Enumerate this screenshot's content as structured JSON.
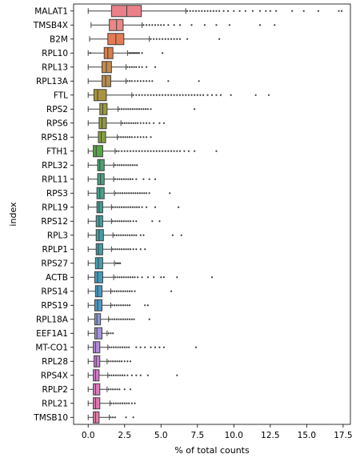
{
  "chart_data": {
    "type": "box",
    "orientation": "horizontal",
    "xlabel": "% of total counts",
    "ylabel": "index",
    "xlim": [
      -1.0,
      18.0
    ],
    "xticks": [
      0.0,
      2.5,
      5.0,
      7.5,
      10.0,
      12.5,
      15.0,
      17.5
    ],
    "xtick_labels": [
      "0.0",
      "2.5",
      "5.0",
      "7.5",
      "10.0",
      "12.5",
      "15.0",
      "17.5"
    ],
    "grid": false,
    "categories": [
      "MALAT1",
      "TMSB4X",
      "B2M",
      "RPL10",
      "RPL13",
      "RPL13A",
      "FTL",
      "RPS2",
      "RPS6",
      "RPS18",
      "FTH1",
      "RPL32",
      "RPL11",
      "RPS3",
      "RPL19",
      "RPS12",
      "RPL3",
      "RPLP1",
      "RPS27",
      "ACTB",
      "RPS14",
      "RPS19",
      "RPL18A",
      "EEF1A1",
      "MT-CO1",
      "RPL28",
      "RPS4X",
      "RPLP2",
      "RPL21",
      "TMSB10"
    ],
    "colors": [
      "#ea8089",
      "#e98887",
      "#e37b56",
      "#d97e49",
      "#c58b4b",
      "#b78c4e",
      "#a9933e",
      "#9b9a3d",
      "#8f993f",
      "#84a03f",
      "#56a646",
      "#48a477",
      "#47a385",
      "#45a28d",
      "#43a094",
      "#43a09c",
      "#429fa4",
      "#429ea8",
      "#429fb0",
      "#449bbe",
      "#489ac4",
      "#4a98c8",
      "#8b9ad6",
      "#a294d9",
      "#b28cd6",
      "#c57ed3",
      "#d179ca",
      "#d97ebd",
      "#df77b2",
      "#e17da7"
    ],
    "boxes": [
      {
        "whislo": 0.0,
        "q1": 1.6,
        "med": 2.65,
        "q3": 3.65,
        "whishi": 6.7,
        "outliers": [
          6.8,
          7.0,
          7.2,
          7.4,
          7.6,
          7.8,
          8.0,
          8.2,
          8.4,
          8.6,
          8.8,
          9.0,
          9.3,
          9.6,
          10.0,
          10.4,
          10.8,
          11.3,
          11.8,
          12.2,
          12.5,
          12.9,
          14.0,
          14.8,
          15.8,
          17.2,
          17.4
        ]
      },
      {
        "whislo": 0.2,
        "q1": 1.45,
        "med": 1.95,
        "q3": 2.4,
        "whishi": 3.7,
        "outliers": [
          3.8,
          4.0,
          4.2,
          4.4,
          4.6,
          4.8,
          5.0,
          5.2,
          5.5,
          5.9,
          6.3,
          7.1,
          8.0,
          8.8,
          9.7,
          11.8,
          12.8
        ]
      },
      {
        "whislo": 0.1,
        "q1": 1.35,
        "med": 1.9,
        "q3": 2.45,
        "whishi": 4.2,
        "outliers": [
          4.3,
          4.5,
          4.7,
          4.9,
          5.1,
          5.3,
          5.5,
          5.7,
          5.9,
          6.1,
          6.3,
          6.8,
          9.0
        ]
      },
      {
        "whislo": 0.0,
        "q1": 1.1,
        "med": 1.35,
        "q3": 1.7,
        "whishi": 2.7,
        "outliers": [
          0.15,
          2.8,
          2.9,
          3.0,
          3.1,
          3.2,
          3.3,
          3.4,
          3.5,
          3.7,
          5.1
        ]
      },
      {
        "whislo": 0.0,
        "q1": 0.95,
        "med": 1.25,
        "q3": 1.6,
        "whishi": 2.6,
        "outliers": [
          2.7,
          2.85,
          3.0,
          3.15,
          3.3,
          3.5,
          3.7,
          4.0,
          4.6
        ]
      },
      {
        "whislo": 0.0,
        "q1": 0.95,
        "med": 1.2,
        "q3": 1.55,
        "whishi": 2.6,
        "outliers": [
          2.7,
          2.85,
          3.0,
          3.2,
          3.4,
          3.6,
          3.8,
          4.0,
          4.2,
          4.4,
          5.5,
          7.6
        ]
      },
      {
        "whislo": 0.0,
        "q1": 0.4,
        "med": 0.65,
        "q3": 1.25,
        "whishi": 3.0,
        "outliers": [
          3.1,
          3.3,
          3.5,
          3.7,
          3.9,
          4.1,
          4.3,
          4.5,
          4.7,
          4.9,
          5.1,
          5.3,
          5.5,
          5.7,
          5.9,
          6.1,
          6.3,
          6.5,
          6.7,
          6.9,
          7.1,
          7.3,
          7.5,
          7.7,
          7.9,
          8.2,
          8.5,
          8.8,
          9.1,
          9.8,
          11.5,
          12.4
        ]
      },
      {
        "whislo": 0.0,
        "q1": 0.8,
        "med": 1.0,
        "q3": 1.3,
        "whishi": 2.05,
        "outliers": [
          2.15,
          2.3,
          2.45,
          2.6,
          2.75,
          2.9,
          3.05,
          3.2,
          3.35,
          3.5,
          3.65,
          3.8,
          3.95,
          4.1,
          4.3,
          7.3
        ]
      },
      {
        "whislo": 0.0,
        "q1": 0.75,
        "med": 0.95,
        "q3": 1.25,
        "whishi": 2.25,
        "outliers": [
          2.35,
          2.5,
          2.65,
          2.8,
          2.95,
          3.1,
          3.25,
          3.4,
          3.6,
          3.8,
          4.0,
          4.2,
          4.5,
          4.9,
          5.2
        ]
      },
      {
        "whislo": 0.0,
        "q1": 0.7,
        "med": 0.9,
        "q3": 1.2,
        "whishi": 2.0,
        "outliers": [
          2.1,
          2.25,
          2.4,
          2.55,
          2.7,
          2.85,
          3.0,
          3.2,
          3.4,
          3.6,
          3.8,
          4.0,
          4.3
        ]
      },
      {
        "whislo": 0.0,
        "q1": 0.35,
        "med": 0.55,
        "q3": 1.0,
        "whishi": 1.85,
        "outliers": [
          1.95,
          2.1,
          2.3,
          2.5,
          2.7,
          2.9,
          3.1,
          3.3,
          3.5,
          3.7,
          3.9,
          4.1,
          4.3,
          4.5,
          4.7,
          4.9,
          5.1,
          5.3,
          5.5,
          5.7,
          5.9,
          6.1,
          6.3,
          6.6,
          6.9,
          7.3,
          8.8
        ]
      },
      {
        "whislo": 0.0,
        "q1": 0.65,
        "med": 0.8,
        "q3": 1.1,
        "whishi": 1.75,
        "outliers": [
          1.85,
          2.0,
          2.15,
          2.3,
          2.45,
          2.6,
          2.75,
          2.9,
          3.05,
          3.2,
          3.35
        ]
      },
      {
        "whislo": 0.0,
        "q1": 0.65,
        "med": 0.85,
        "q3": 1.1,
        "whishi": 1.75,
        "outliers": [
          1.85,
          2.0,
          2.15,
          2.3,
          2.45,
          2.6,
          2.75,
          2.9,
          3.05,
          3.3,
          3.8,
          4.2,
          4.6
        ]
      },
      {
        "whislo": 0.0,
        "q1": 0.6,
        "med": 0.8,
        "q3": 1.1,
        "whishi": 1.8,
        "outliers": [
          1.9,
          2.05,
          2.2,
          2.35,
          2.5,
          2.65,
          2.8,
          2.95,
          3.1,
          3.25,
          3.4,
          3.55,
          3.7,
          3.85,
          4.0,
          4.2,
          5.6
        ]
      },
      {
        "whislo": 0.0,
        "q1": 0.6,
        "med": 0.75,
        "q3": 1.0,
        "whishi": 1.6,
        "outliers": [
          1.7,
          1.85,
          2.0,
          2.15,
          2.3,
          2.45,
          2.6,
          2.75,
          2.9,
          3.05,
          3.2,
          3.35,
          3.5,
          3.7,
          4.0,
          4.6,
          6.2
        ]
      },
      {
        "whislo": 0.0,
        "q1": 0.55,
        "med": 0.75,
        "q3": 1.0,
        "whishi": 1.6,
        "outliers": [
          1.7,
          1.85,
          2.0,
          2.15,
          2.3,
          2.45,
          2.6,
          2.75,
          2.9,
          3.1,
          3.3,
          4.4,
          4.9
        ]
      },
      {
        "whislo": 0.0,
        "q1": 0.55,
        "med": 0.75,
        "q3": 1.05,
        "whishi": 1.7,
        "outliers": [
          1.8,
          1.95,
          2.1,
          2.25,
          2.4,
          2.55,
          2.7,
          2.85,
          3.0,
          3.15,
          3.3,
          3.6,
          3.8,
          5.8,
          6.4
        ]
      },
      {
        "whislo": 0.0,
        "q1": 0.55,
        "med": 0.7,
        "q3": 1.0,
        "whishi": 1.6,
        "outliers": [
          1.7,
          1.85,
          2.0,
          2.15,
          2.3,
          2.45,
          2.6,
          2.75,
          2.9,
          3.1,
          3.3,
          3.6,
          3.9
        ]
      },
      {
        "whislo": 0.0,
        "q1": 0.5,
        "med": 0.7,
        "q3": 1.0,
        "whishi": 1.8,
        "outliers": [
          1.9,
          2.0,
          2.1,
          2.2
        ]
      },
      {
        "whislo": 0.0,
        "q1": 0.45,
        "med": 0.65,
        "q3": 1.0,
        "whishi": 1.75,
        "outliers": [
          1.85,
          2.0,
          2.15,
          2.3,
          2.45,
          2.6,
          2.75,
          2.9,
          3.05,
          3.2,
          3.4,
          3.7,
          4.1,
          4.5,
          5.0,
          5.2,
          6.1,
          8.5
        ]
      },
      {
        "whislo": 0.0,
        "q1": 0.5,
        "med": 0.65,
        "q3": 0.95,
        "whishi": 1.55,
        "outliers": [
          1.65,
          1.8,
          1.95,
          2.1,
          2.25,
          2.4,
          2.55,
          2.7,
          2.85,
          3.0,
          3.2,
          5.7
        ]
      },
      {
        "whislo": 0.0,
        "q1": 0.45,
        "med": 0.65,
        "q3": 0.95,
        "whishi": 1.55,
        "outliers": [
          1.65,
          1.8,
          1.95,
          2.1,
          2.25,
          2.4,
          2.55,
          2.7,
          2.85,
          3.9,
          4.1
        ]
      },
      {
        "whislo": 0.0,
        "q1": 0.45,
        "med": 0.6,
        "q3": 0.85,
        "whishi": 1.4,
        "outliers": [
          1.5,
          1.65,
          1.8,
          1.95,
          2.1,
          2.25,
          2.4,
          2.55,
          2.7,
          2.85,
          3.0,
          3.15,
          4.2
        ]
      },
      {
        "whislo": 0.0,
        "q1": 0.45,
        "med": 0.6,
        "q3": 0.95,
        "whishi": 1.3,
        "outliers": [
          1.4,
          1.55,
          1.7
        ]
      },
      {
        "whislo": 0.0,
        "q1": 0.35,
        "med": 0.5,
        "q3": 0.8,
        "whishi": 1.35,
        "outliers": [
          1.45,
          1.6,
          1.75,
          1.9,
          2.05,
          2.2,
          2.35,
          2.5,
          2.65,
          2.8,
          3.3,
          3.6,
          3.9,
          4.3,
          4.6,
          4.9,
          5.2,
          7.4
        ]
      },
      {
        "whislo": 0.0,
        "q1": 0.4,
        "med": 0.55,
        "q3": 0.8,
        "whishi": 1.3,
        "outliers": [
          1.4,
          1.55,
          1.7,
          1.85,
          2.0,
          2.15,
          2.3,
          2.5,
          2.7,
          2.9
        ]
      },
      {
        "whislo": 0.0,
        "q1": 0.35,
        "med": 0.5,
        "q3": 0.75,
        "whishi": 1.35,
        "outliers": [
          1.45,
          1.6,
          1.75,
          1.9,
          2.05,
          2.2,
          2.35,
          2.5,
          2.7,
          3.0,
          3.3,
          3.6,
          4.1,
          6.1
        ]
      },
      {
        "whislo": 0.0,
        "q1": 0.35,
        "med": 0.5,
        "q3": 0.8,
        "whishi": 1.3,
        "outliers": [
          1.4,
          1.55,
          1.7,
          1.85,
          2.0,
          2.15,
          2.5,
          2.9
        ]
      },
      {
        "whislo": 0.0,
        "q1": 0.35,
        "med": 0.5,
        "q3": 0.8,
        "whishi": 1.5,
        "outliers": [
          1.6,
          1.75,
          1.9,
          2.05,
          2.2,
          2.35,
          2.5,
          2.65,
          2.8,
          3.0,
          3.2
        ]
      },
      {
        "whislo": 0.0,
        "q1": 0.35,
        "med": 0.5,
        "q3": 0.75,
        "whishi": 1.45,
        "outliers": [
          1.55,
          1.7,
          1.85,
          2.6,
          3.1
        ]
      }
    ]
  }
}
